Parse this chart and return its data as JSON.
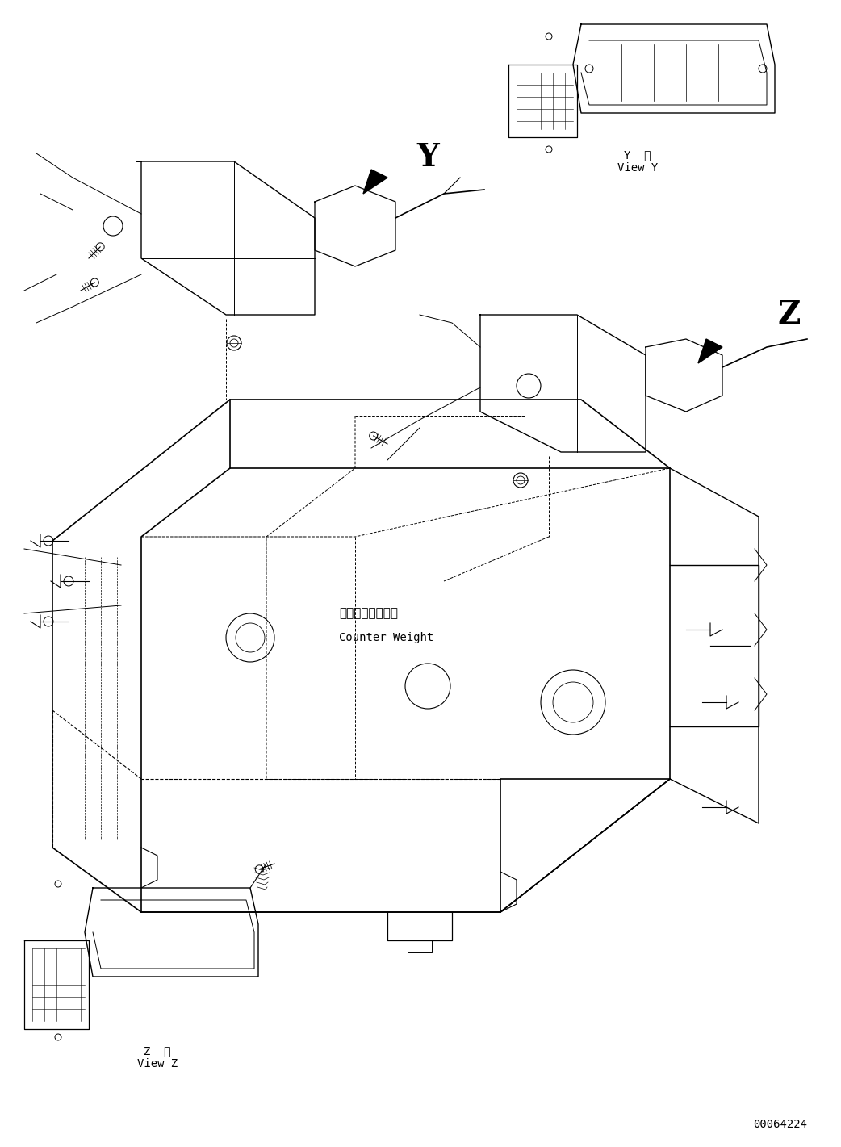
{
  "fig_width": 10.42,
  "fig_height": 14.21,
  "dpi": 100,
  "bg_color": "#ffffff",
  "line_color": "#000000",
  "line_width": 0.8,
  "title_text": "",
  "doc_number": "00064224",
  "label_Y_view": "Y  視\nView Y",
  "label_Z_view": "Z  視\nView Z",
  "label_counter_weight_jp": "カウンタウェイト",
  "label_counter_weight_en": "Counter Weight",
  "Y_marker": "Y",
  "Z_marker": "Z"
}
